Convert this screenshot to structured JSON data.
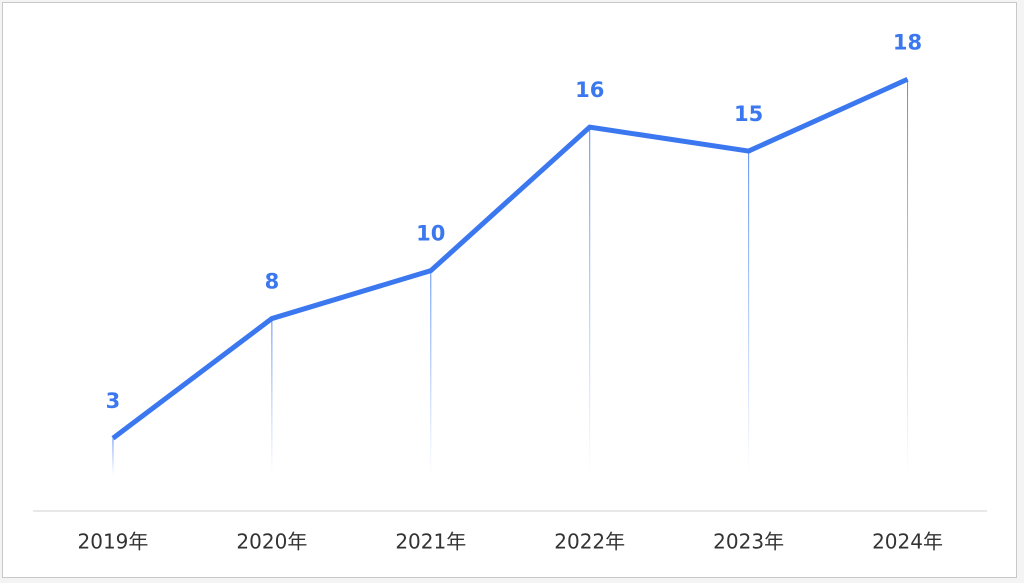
{
  "chart_data": {
    "type": "line",
    "categories": [
      "2019年",
      "2020年",
      "2021年",
      "2022年",
      "2023年",
      "2024年"
    ],
    "values": [
      3,
      8,
      10,
      16,
      15,
      18
    ],
    "color": "#3b78f0",
    "ylim": [
      0,
      20
    ]
  }
}
